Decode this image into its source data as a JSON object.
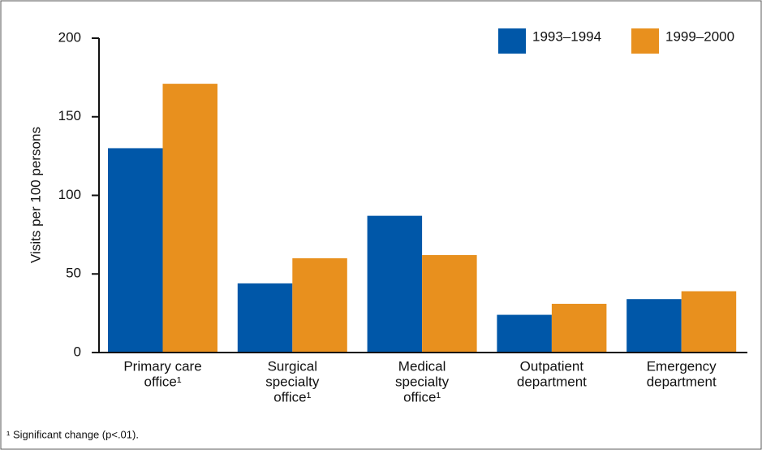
{
  "chart_data": {
    "type": "bar",
    "y_label": "Visits per 100 persons",
    "categories": [
      [
        "Primary care",
        "office¹"
      ],
      [
        "Surgical",
        "specialty",
        "office¹"
      ],
      [
        "Medical",
        "specialty",
        "office¹"
      ],
      [
        "Outpatient",
        "department"
      ],
      [
        "Emergency",
        "department"
      ]
    ],
    "series": [
      {
        "name": "1993–1994",
        "color": "#0057a8",
        "values": [
          130,
          44,
          87,
          24,
          34
        ]
      },
      {
        "name": "1999–2000",
        "color": "#e8901e",
        "values": [
          171,
          60,
          62,
          31,
          39
        ]
      }
    ],
    "ylim": [
      0,
      200
    ],
    "yticks": [
      0,
      50,
      100,
      150,
      200
    ],
    "legend": "top-right",
    "footnote": "¹ Significant change (p<.01)."
  }
}
